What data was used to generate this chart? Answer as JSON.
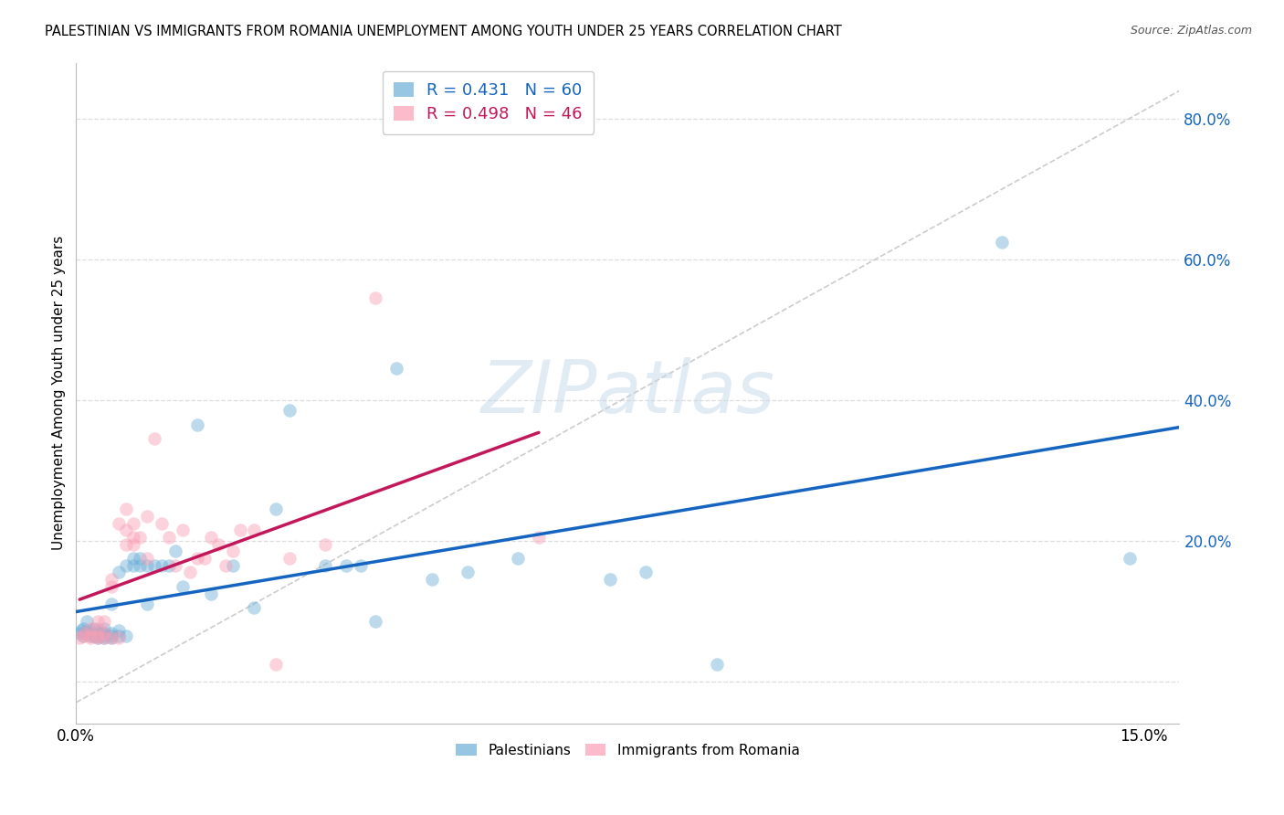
{
  "title": "PALESTINIAN VS IMMIGRANTS FROM ROMANIA UNEMPLOYMENT AMONG YOUTH UNDER 25 YEARS CORRELATION CHART",
  "source": "Source: ZipAtlas.com",
  "ylabel": "Unemployment Among Youth under 25 years",
  "xlim": [
    0.0,
    0.155
  ],
  "ylim": [
    -0.06,
    0.88
  ],
  "xtick_positions": [
    0.0,
    0.025,
    0.05,
    0.075,
    0.1,
    0.125,
    0.15
  ],
  "xticklabels": [
    "0.0%",
    "",
    "",
    "",
    "",
    "",
    "15.0%"
  ],
  "ytick_positions": [
    0.0,
    0.2,
    0.4,
    0.6,
    0.8
  ],
  "yticklabels": [
    "",
    "20.0%",
    "40.0%",
    "60.0%",
    "80.0%"
  ],
  "palestinians_color": "#6baed6",
  "romania_color": "#fa9fb5",
  "trend_pal_color": "#1565c0",
  "trend_rom_color": "#c2185b",
  "diagonal_color": "#cccccc",
  "background_color": "#ffffff",
  "grid_color": "#dddddd",
  "R_pal": "0.431",
  "N_pal": "60",
  "R_rom": "0.498",
  "N_rom": "46",
  "palestinians_x": [
    0.0005,
    0.0007,
    0.001,
    0.001,
    0.0012,
    0.0015,
    0.0015,
    0.002,
    0.002,
    0.002,
    0.0025,
    0.0025,
    0.003,
    0.003,
    0.003,
    0.003,
    0.0035,
    0.004,
    0.004,
    0.004,
    0.004,
    0.005,
    0.005,
    0.005,
    0.005,
    0.006,
    0.006,
    0.006,
    0.007,
    0.007,
    0.008,
    0.008,
    0.009,
    0.009,
    0.01,
    0.01,
    0.011,
    0.012,
    0.013,
    0.014,
    0.015,
    0.017,
    0.019,
    0.022,
    0.025,
    0.028,
    0.03,
    0.035,
    0.038,
    0.04,
    0.042,
    0.045,
    0.05,
    0.055,
    0.062,
    0.075,
    0.08,
    0.09,
    0.13,
    0.148
  ],
  "palestinians_y": [
    0.068,
    0.072,
    0.065,
    0.075,
    0.068,
    0.07,
    0.085,
    0.065,
    0.068,
    0.072,
    0.065,
    0.075,
    0.062,
    0.065,
    0.068,
    0.072,
    0.068,
    0.062,
    0.065,
    0.068,
    0.075,
    0.062,
    0.065,
    0.068,
    0.11,
    0.065,
    0.072,
    0.155,
    0.065,
    0.165,
    0.165,
    0.175,
    0.165,
    0.175,
    0.11,
    0.165,
    0.165,
    0.165,
    0.165,
    0.185,
    0.135,
    0.365,
    0.125,
    0.165,
    0.105,
    0.245,
    0.385,
    0.165,
    0.165,
    0.165,
    0.085,
    0.445,
    0.145,
    0.155,
    0.175,
    0.145,
    0.155,
    0.025,
    0.625,
    0.175
  ],
  "romania_x": [
    0.0005,
    0.001,
    0.0012,
    0.002,
    0.002,
    0.002,
    0.003,
    0.003,
    0.003,
    0.003,
    0.004,
    0.004,
    0.004,
    0.005,
    0.005,
    0.005,
    0.006,
    0.006,
    0.007,
    0.007,
    0.007,
    0.008,
    0.008,
    0.008,
    0.009,
    0.01,
    0.01,
    0.011,
    0.012,
    0.013,
    0.014,
    0.015,
    0.016,
    0.017,
    0.018,
    0.019,
    0.02,
    0.021,
    0.022,
    0.023,
    0.025,
    0.028,
    0.03,
    0.035,
    0.042,
    0.065
  ],
  "romania_y": [
    0.062,
    0.065,
    0.068,
    0.062,
    0.065,
    0.075,
    0.062,
    0.065,
    0.075,
    0.085,
    0.062,
    0.068,
    0.085,
    0.062,
    0.135,
    0.145,
    0.062,
    0.225,
    0.195,
    0.215,
    0.245,
    0.195,
    0.205,
    0.225,
    0.205,
    0.175,
    0.235,
    0.345,
    0.225,
    0.205,
    0.165,
    0.215,
    0.155,
    0.175,
    0.175,
    0.205,
    0.195,
    0.165,
    0.185,
    0.215,
    0.215,
    0.025,
    0.175,
    0.195,
    0.545,
    0.205
  ],
  "marker_size": 110,
  "marker_alpha": 0.45,
  "watermark_color": "#c5d8ea",
  "watermark_alpha": 0.5
}
